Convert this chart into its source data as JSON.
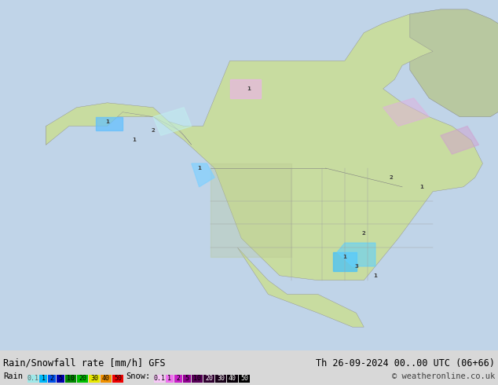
{
  "title_left": "Rain/Snowfall rate [mm/h] GFS",
  "title_right": "Th 26-09-2024 00..00 UTC (06+66)",
  "copyright": "© weatheronline.co.uk",
  "legend_rain_label": "Rain",
  "legend_snow_label": "Snow:",
  "rain_thresholds": [
    "0.1",
    "1",
    "2",
    "5",
    "10",
    "20",
    "30",
    "40",
    "50"
  ],
  "snow_thresholds": [
    "0.1",
    "1",
    "2",
    "5",
    "10",
    "20",
    "30",
    "40",
    "50"
  ],
  "rain_colors": [
    "#aaf0f0",
    "#00c0ff",
    "#0060ff",
    "#0000c0",
    "#00a000",
    "#00d000",
    "#ffff00",
    "#ffa000",
    "#ff0000"
  ],
  "snow_colors": [
    "#ffccff",
    "#ff99ff",
    "#ee44ee",
    "#cc00cc",
    "#880088",
    "#440044",
    "#220022",
    "#110011",
    "#000000"
  ],
  "background_color": "#e8e8e8",
  "map_bg": "#f0f0f0",
  "fig_width": 6.34,
  "fig_height": 4.9,
  "dpi": 100
}
